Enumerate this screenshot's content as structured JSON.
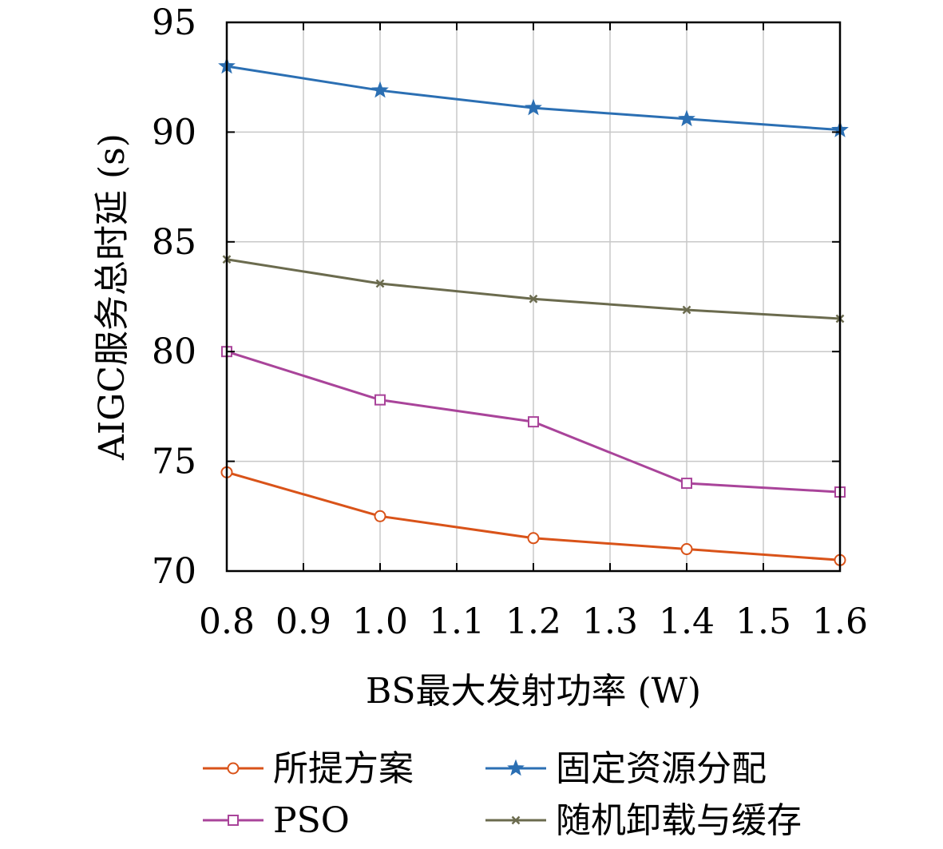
{
  "chart_data": {
    "type": "line",
    "xlabel": "BS最大发射功率 (W)",
    "ylabel": "AIGC服务总时延 (s)",
    "xlim": [
      0.8,
      1.6
    ],
    "ylim": [
      70,
      95
    ],
    "xticks": [
      "0.8",
      "0.9",
      "1.0",
      "1.1",
      "1.2",
      "1.3",
      "1.4",
      "1.5",
      "1.6"
    ],
    "yticks": [
      "70",
      "75",
      "80",
      "85",
      "90",
      "95"
    ],
    "grid": true,
    "legend_position": "bottom",
    "x": [
      0.8,
      1.0,
      1.2,
      1.4,
      1.6
    ],
    "series": [
      {
        "name": "所提方案",
        "values": [
          74.5,
          72.5,
          71.5,
          71.0,
          70.5
        ],
        "color": "#d95319",
        "marker": "circle"
      },
      {
        "name": "固定资源分配",
        "values": [
          93.0,
          91.9,
          91.1,
          90.6,
          90.1
        ],
        "color": "#2b6fb3",
        "marker": "star"
      },
      {
        "name": "PSO",
        "values": [
          80.0,
          77.8,
          76.8,
          74.0,
          73.6
        ],
        "color": "#a9449a",
        "marker": "square"
      },
      {
        "name": "随机卸载与缓存",
        "values": [
          84.2,
          83.1,
          82.4,
          81.9,
          81.5
        ],
        "color": "#6b6b4e",
        "marker": "x"
      }
    ]
  }
}
